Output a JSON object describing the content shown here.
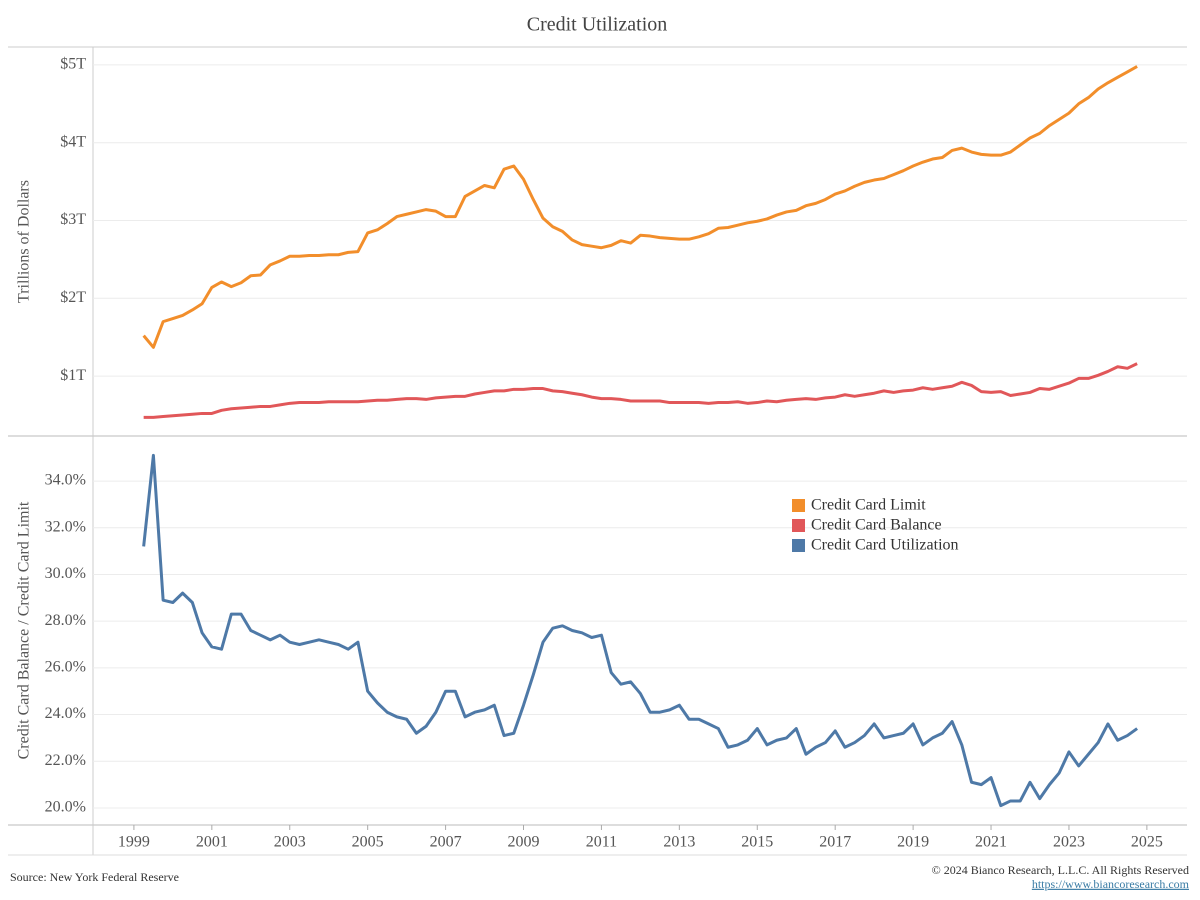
{
  "chart_data": [
    {
      "type": "line",
      "title": "Credit Utilization",
      "y_label": "Trillions of Dollars",
      "x": [
        1999.25,
        1999.5,
        1999.75,
        2000,
        2000.25,
        2000.5,
        2000.75,
        2001,
        2001.25,
        2001.5,
        2001.75,
        2002,
        2002.25,
        2002.5,
        2002.75,
        2003,
        2003.25,
        2003.5,
        2003.75,
        2004,
        2004.25,
        2004.5,
        2004.75,
        2005,
        2005.25,
        2005.5,
        2005.75,
        2006,
        2006.25,
        2006.5,
        2006.75,
        2007,
        2007.25,
        2007.5,
        2007.75,
        2008,
        2008.25,
        2008.5,
        2008.75,
        2009,
        2009.25,
        2009.5,
        2009.75,
        2010,
        2010.25,
        2010.5,
        2010.75,
        2011,
        2011.25,
        2011.5,
        2011.75,
        2012,
        2012.25,
        2012.5,
        2012.75,
        2013,
        2013.25,
        2013.5,
        2013.75,
        2014,
        2014.25,
        2014.5,
        2014.75,
        2015,
        2015.25,
        2015.5,
        2015.75,
        2016,
        2016.25,
        2016.5,
        2016.75,
        2017,
        2017.25,
        2017.5,
        2017.75,
        2018,
        2018.25,
        2018.5,
        2018.75,
        2019,
        2019.25,
        2019.5,
        2019.75,
        2020,
        2020.25,
        2020.5,
        2020.75,
        2021,
        2021.25,
        2021.5,
        2021.75,
        2022,
        2022.25,
        2022.5,
        2022.75,
        2023,
        2023.25,
        2023.5,
        2023.75,
        2024,
        2024.25,
        2024.5,
        2024.75
      ],
      "series": [
        {
          "name": "Credit Card Limit",
          "color": "#f28e2b",
          "values": [
            1.52,
            1.37,
            1.7,
            1.74,
            1.78,
            1.85,
            1.93,
            2.14,
            2.21,
            2.15,
            2.2,
            2.29,
            2.3,
            2.43,
            2.48,
            2.54,
            2.54,
            2.55,
            2.55,
            2.56,
            2.56,
            2.59,
            2.6,
            2.84,
            2.88,
            2.96,
            3.05,
            3.08,
            3.11,
            3.14,
            3.12,
            3.05,
            3.05,
            3.31,
            3.38,
            3.45,
            3.42,
            3.66,
            3.7,
            3.53,
            3.27,
            3.03,
            2.92,
            2.86,
            2.75,
            2.69,
            2.67,
            2.65,
            2.68,
            2.74,
            2.71,
            2.81,
            2.8,
            2.78,
            2.77,
            2.76,
            2.76,
            2.79,
            2.83,
            2.9,
            2.91,
            2.94,
            2.97,
            2.99,
            3.02,
            3.07,
            3.11,
            3.13,
            3.19,
            3.22,
            3.27,
            3.34,
            3.38,
            3.44,
            3.49,
            3.52,
            3.54,
            3.59,
            3.64,
            3.7,
            3.75,
            3.79,
            3.81,
            3.9,
            3.93,
            3.88,
            3.85,
            3.84,
            3.84,
            3.88,
            3.97,
            4.06,
            4.12,
            4.22,
            4.3,
            4.38,
            4.5,
            4.58,
            4.69,
            4.77,
            4.84,
            4.91,
            4.98
          ]
        },
        {
          "name": "Credit Card Balance",
          "color": "#e15759",
          "values": [
            0.47,
            0.47,
            0.48,
            0.49,
            0.5,
            0.51,
            0.52,
            0.52,
            0.56,
            0.58,
            0.59,
            0.6,
            0.61,
            0.61,
            0.63,
            0.65,
            0.66,
            0.66,
            0.66,
            0.67,
            0.67,
            0.67,
            0.67,
            0.68,
            0.69,
            0.69,
            0.7,
            0.71,
            0.71,
            0.7,
            0.72,
            0.73,
            0.74,
            0.74,
            0.77,
            0.79,
            0.81,
            0.81,
            0.83,
            0.83,
            0.84,
            0.84,
            0.81,
            0.8,
            0.78,
            0.76,
            0.73,
            0.71,
            0.71,
            0.7,
            0.68,
            0.68,
            0.68,
            0.68,
            0.66,
            0.66,
            0.66,
            0.66,
            0.65,
            0.66,
            0.66,
            0.67,
            0.65,
            0.66,
            0.68,
            0.67,
            0.69,
            0.7,
            0.71,
            0.7,
            0.72,
            0.73,
            0.76,
            0.74,
            0.76,
            0.78,
            0.81,
            0.79,
            0.81,
            0.82,
            0.85,
            0.83,
            0.85,
            0.87,
            0.92,
            0.88,
            0.8,
            0.79,
            0.8,
            0.75,
            0.77,
            0.79,
            0.84,
            0.83,
            0.87,
            0.91,
            0.97,
            0.97,
            1.01,
            1.06,
            1.12,
            1.1,
            1.16
          ]
        }
      ],
      "xlim": [
        1997.95,
        2026.03
      ],
      "ylim": [
        0.23,
        5.23
      ],
      "yticks": [
        {
          "value": 1,
          "label": "$1T"
        },
        {
          "value": 2,
          "label": "$2T"
        },
        {
          "value": 3,
          "label": "$3T"
        },
        {
          "value": 4,
          "label": "$4T"
        },
        {
          "value": 5,
          "label": "$5T"
        }
      ],
      "grid": true
    },
    {
      "type": "line",
      "y_label": "Credit Card Balance / Credit Card Limit",
      "x": [
        1999.25,
        1999.5,
        1999.75,
        2000,
        2000.25,
        2000.5,
        2000.75,
        2001,
        2001.25,
        2001.5,
        2001.75,
        2002,
        2002.25,
        2002.5,
        2002.75,
        2003,
        2003.25,
        2003.5,
        2003.75,
        2004,
        2004.25,
        2004.5,
        2004.75,
        2005,
        2005.25,
        2005.5,
        2005.75,
        2006,
        2006.25,
        2006.5,
        2006.75,
        2007,
        2007.25,
        2007.5,
        2007.75,
        2008,
        2008.25,
        2008.5,
        2008.75,
        2009,
        2009.25,
        2009.5,
        2009.75,
        2010,
        2010.25,
        2010.5,
        2010.75,
        2011,
        2011.25,
        2011.5,
        2011.75,
        2012,
        2012.25,
        2012.5,
        2012.75,
        2013,
        2013.25,
        2013.5,
        2013.75,
        2014,
        2014.25,
        2014.5,
        2014.75,
        2015,
        2015.25,
        2015.5,
        2015.75,
        2016,
        2016.25,
        2016.5,
        2016.75,
        2017,
        2017.25,
        2017.5,
        2017.75,
        2018,
        2018.25,
        2018.5,
        2018.75,
        2019,
        2019.25,
        2019.5,
        2019.75,
        2020,
        2020.25,
        2020.5,
        2020.75,
        2021,
        2021.25,
        2021.5,
        2021.75,
        2022,
        2022.25,
        2022.5,
        2022.75,
        2023,
        2023.25,
        2023.5,
        2023.75,
        2024,
        2024.25,
        2024.5,
        2024.75
      ],
      "series": [
        {
          "name": "Credit Card Utilization",
          "color": "#4e79a7",
          "values": [
            31.2,
            35.1,
            28.9,
            28.8,
            29.2,
            28.8,
            27.5,
            26.9,
            26.8,
            28.3,
            28.3,
            27.6,
            27.4,
            27.2,
            27.4,
            27.1,
            27.0,
            27.1,
            27.2,
            27.1,
            27.0,
            26.8,
            27.1,
            25.0,
            24.5,
            24.1,
            23.9,
            23.8,
            23.2,
            23.5,
            24.1,
            25.0,
            25.0,
            23.9,
            24.1,
            24.2,
            24.4,
            23.1,
            23.2,
            24.4,
            25.7,
            27.1,
            27.7,
            27.8,
            27.6,
            27.5,
            27.3,
            27.4,
            25.8,
            25.3,
            25.4,
            24.9,
            24.1,
            24.1,
            24.2,
            24.4,
            23.8,
            23.8,
            23.6,
            23.4,
            22.6,
            22.7,
            22.9,
            23.4,
            22.7,
            22.9,
            23.0,
            23.4,
            22.3,
            22.6,
            22.8,
            23.3,
            22.6,
            22.8,
            23.1,
            23.6,
            23.0,
            23.1,
            23.2,
            23.6,
            22.7,
            23.0,
            23.2,
            23.7,
            22.7,
            21.1,
            21.0,
            21.3,
            20.1,
            20.3,
            20.3,
            21.1,
            20.4,
            21.0,
            21.5,
            22.4,
            21.8,
            22.3,
            22.8,
            23.6,
            22.9,
            23.1,
            23.4
          ]
        }
      ],
      "xlim": [
        1997.95,
        2026.03
      ],
      "ylim": [
        19.27,
        35.93
      ],
      "xticks": [
        1999,
        2001,
        2003,
        2005,
        2007,
        2009,
        2011,
        2013,
        2015,
        2017,
        2019,
        2021,
        2023,
        2025
      ],
      "yticks": [
        {
          "value": 20,
          "label": "20.0%"
        },
        {
          "value": 22,
          "label": "22.0%"
        },
        {
          "value": 24,
          "label": "24.0%"
        },
        {
          "value": 26,
          "label": "26.0%"
        },
        {
          "value": 28,
          "label": "28.0%"
        },
        {
          "value": 30,
          "label": "30.0%"
        },
        {
          "value": 32,
          "label": "32.0%"
        },
        {
          "value": 34,
          "label": "34.0%"
        }
      ],
      "grid": true,
      "legend": "upper right"
    }
  ],
  "footer": {
    "source": "Source: New York Federal Reserve",
    "copyright": "© 2024 Bianco Research, L.L.C. All Rights Reserved",
    "url": "https://www.biancoresearch.com"
  }
}
